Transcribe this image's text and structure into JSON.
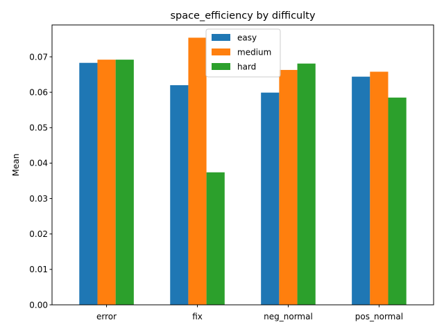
{
  "chart_data": {
    "type": "bar",
    "title": "space_efficiency by difficulty",
    "xlabel": "",
    "ylabel": "Mean",
    "categories": [
      "error",
      "fix",
      "neg_normal",
      "pos_normal"
    ],
    "series": [
      {
        "name": "easy",
        "values": [
          0.0683,
          0.062,
          0.0599,
          0.0644
        ],
        "color": "#1f77b4"
      },
      {
        "name": "medium",
        "values": [
          0.0692,
          0.0754,
          0.0663,
          0.0658
        ],
        "color": "#ff7f0e"
      },
      {
        "name": "hard",
        "values": [
          0.0692,
          0.0374,
          0.0681,
          0.0585
        ],
        "color": "#2ca02c"
      }
    ],
    "ylim": [
      0,
      0.079
    ],
    "yticks": [
      "0.00",
      "0.01",
      "0.02",
      "0.03",
      "0.04",
      "0.05",
      "0.06",
      "0.07"
    ],
    "legend_position": "top-center",
    "grid": false
  }
}
